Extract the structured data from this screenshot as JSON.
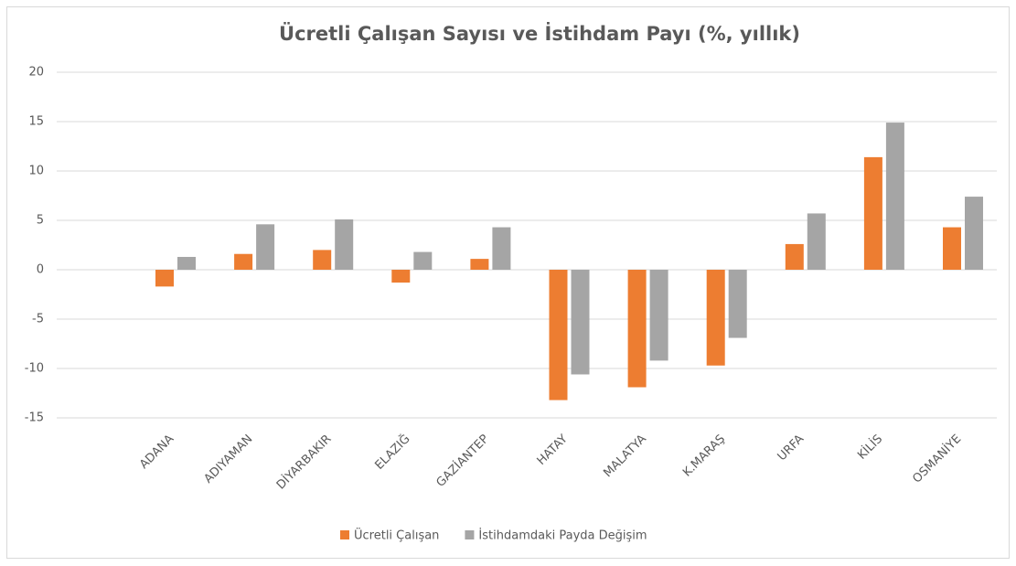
{
  "chart_data": {
    "type": "bar",
    "title": "Ücretli Çalışan Sayısı ve İstihdam Payı (%, yıllık)",
    "categories": [
      "ADANA",
      "ADIYAMAN",
      "DİYARBAKIR",
      "ELAZIĞ",
      "GAZİANTEP",
      "HATAY",
      "MALATYA",
      "K.MARAŞ",
      "URFA",
      "KİLİS",
      "OSMANİYE"
    ],
    "series": [
      {
        "name": "Ücretli Çalışan",
        "color": "#ed7d31",
        "values": [
          -1.7,
          1.6,
          2.0,
          -1.3,
          1.1,
          -13.2,
          -11.9,
          -9.7,
          2.6,
          11.4,
          4.3
        ]
      },
      {
        "name": "İstihdamdaki Payda Değişim",
        "color": "#a5a5a5",
        "values": [
          1.3,
          4.6,
          5.1,
          1.8,
          4.3,
          -10.6,
          -9.2,
          -6.9,
          5.7,
          14.9,
          7.4
        ]
      }
    ],
    "ylim": [
      -15,
      20
    ],
    "yticks": [
      -15,
      -10,
      -5,
      0,
      5,
      10,
      15,
      20
    ],
    "grid": true,
    "legend": "bottom"
  }
}
